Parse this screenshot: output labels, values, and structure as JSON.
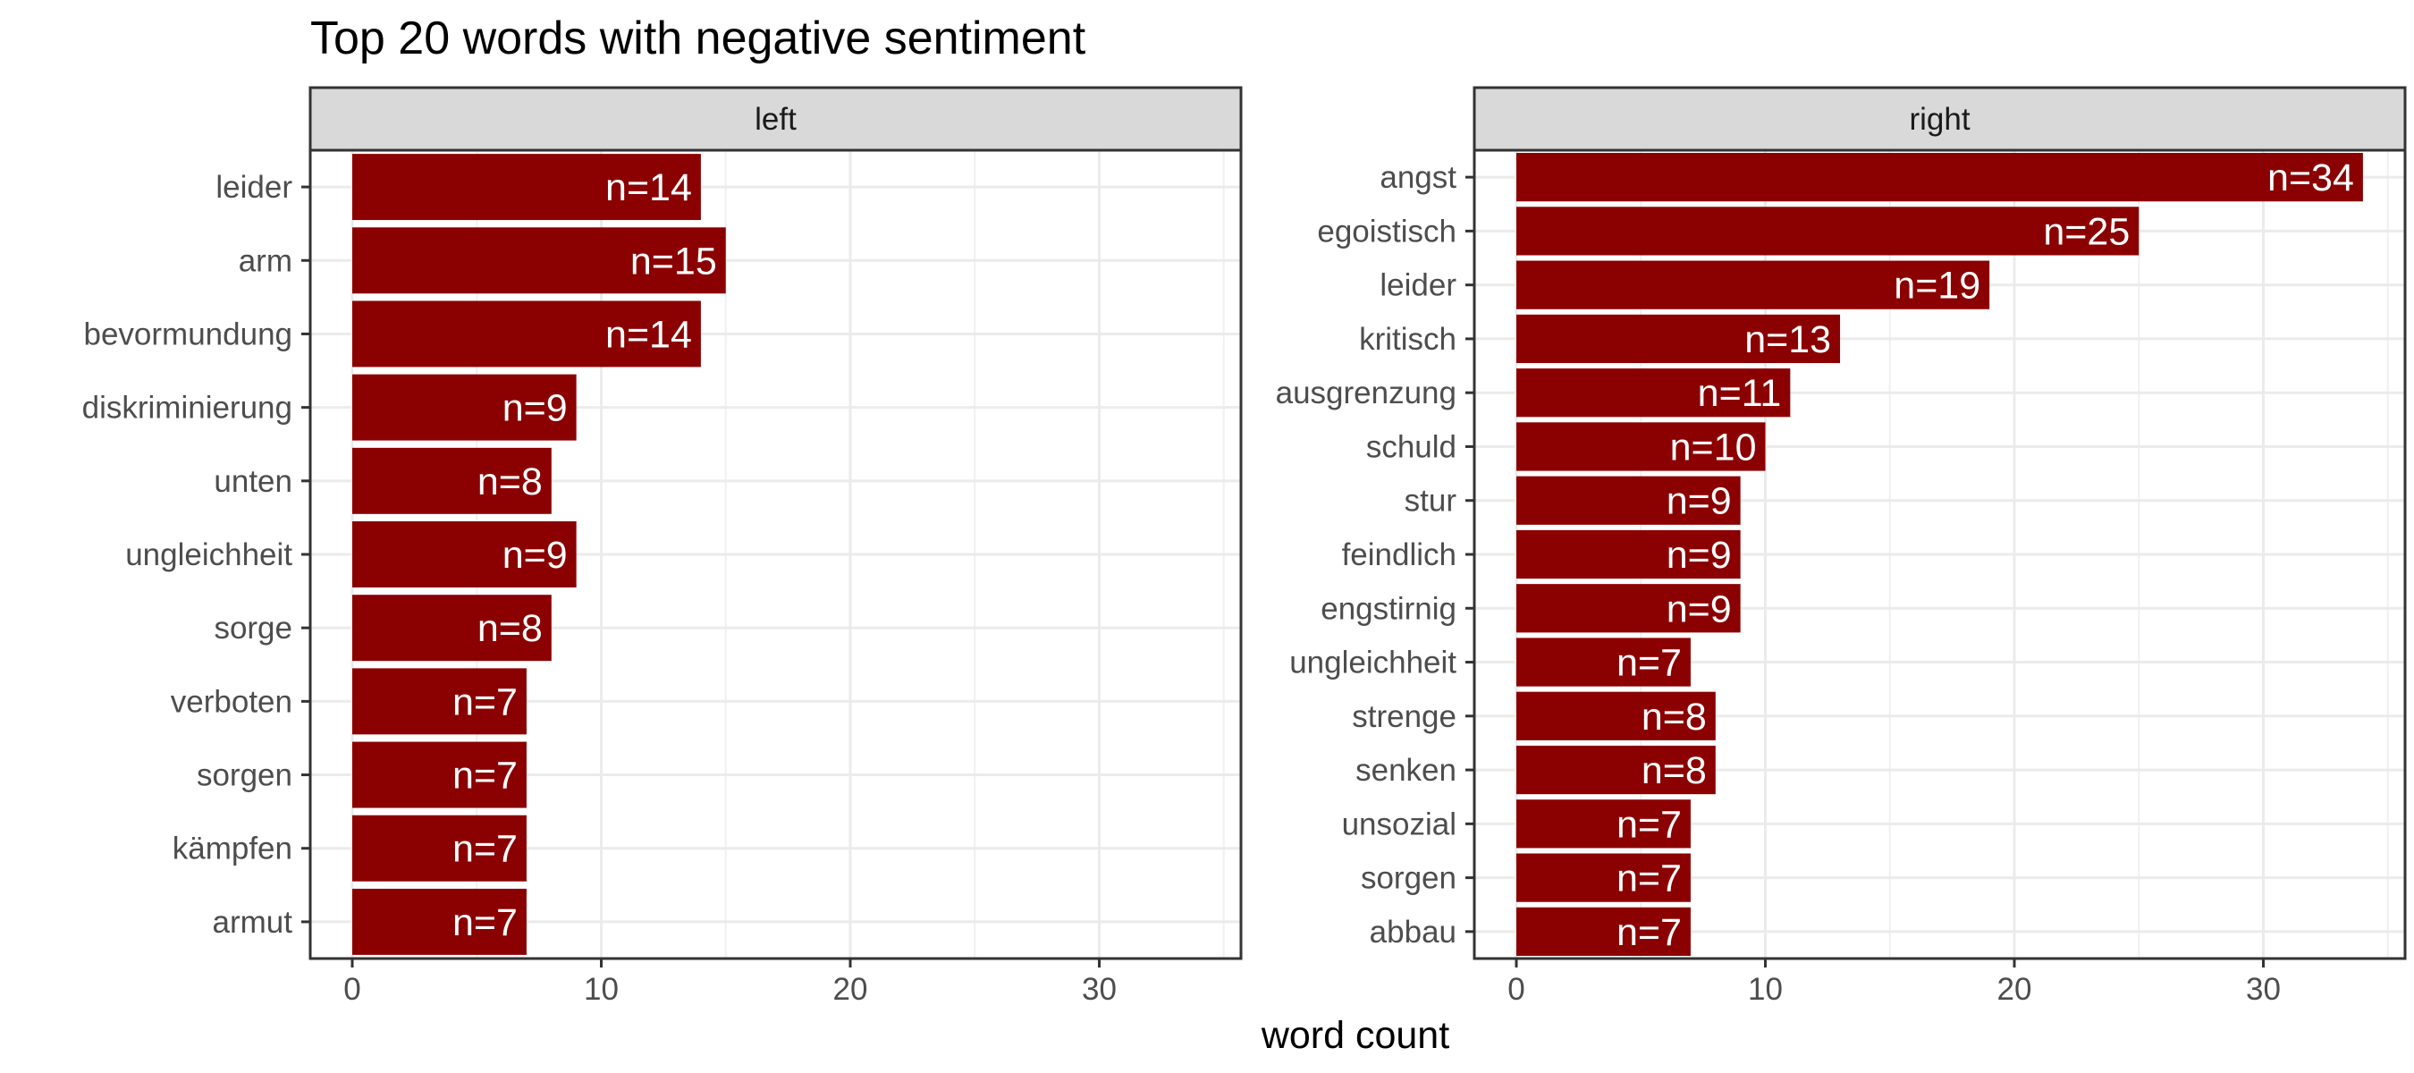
{
  "chart_data": {
    "type": "bar",
    "orientation": "horizontal",
    "title": "Top 20 words with negative sentiment",
    "xlabel": "word count",
    "ylabel": "",
    "xlim": [
      0,
      35
    ],
    "xticks": [
      0,
      10,
      20,
      30
    ],
    "grid": true,
    "bar_color": "#8b0000",
    "label_prefix": "n=",
    "panels": [
      {
        "name": "left",
        "categories": [
          "leider",
          "arm",
          "bevormundung",
          "diskriminierung",
          "unten",
          "ungleichheit",
          "sorge",
          "verboten",
          "sorgen",
          "kämpfen",
          "armut"
        ],
        "values": [
          14,
          15,
          14,
          9,
          8,
          9,
          8,
          7,
          7,
          7,
          7
        ],
        "labels": [
          "n=14",
          "n=15",
          "n=14",
          "n=9",
          "n=8",
          "n=9",
          "n=8",
          "n=7",
          "n=7",
          "n=7",
          "n=7"
        ]
      },
      {
        "name": "right",
        "categories": [
          "angst",
          "egoistisch",
          "leider",
          "kritisch",
          "ausgrenzung",
          "schuld",
          "stur",
          "feindlich",
          "engstirnig",
          "ungleichheit",
          "strenge",
          "senken",
          "unsozial",
          "sorgen",
          "abbau"
        ],
        "values": [
          34,
          25,
          19,
          13,
          11,
          10,
          9,
          9,
          9,
          7,
          8,
          8,
          7,
          7,
          7
        ],
        "labels": [
          "n=34",
          "n=25",
          "n=19",
          "n=13",
          "n=11",
          "n=10",
          "n=9",
          "n=9",
          "n=9",
          "n=7",
          "n=8",
          "n=8",
          "n=7",
          "n=7",
          "n=7"
        ]
      }
    ]
  }
}
